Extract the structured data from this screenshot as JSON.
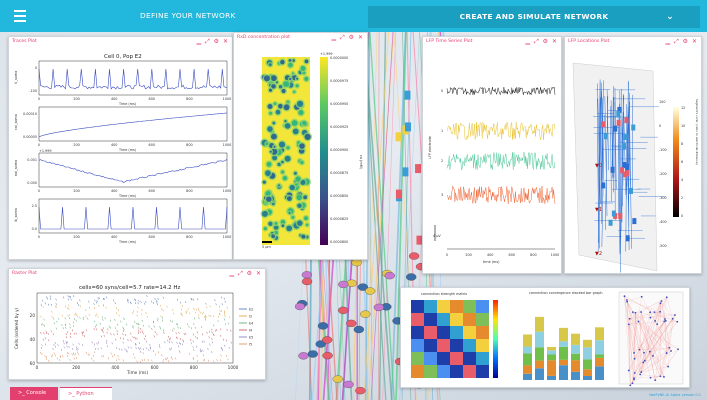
{
  "header": {
    "define_tab": "DEFINE YOUR NETWORK",
    "create_tab": "CREATE AND SIMULATE NETWORK"
  },
  "window_controls": "▁ ⤢ ⚙ ✕",
  "traces": {
    "title": "Traces Plot",
    "plot_title": "Cell 0, Pop E2",
    "xlabel": "Time (ms)",
    "panels": [
      {
        "ylabel": "V_soma",
        "yticks": [
          "0",
          "-100"
        ]
      },
      {
        "ylabel": "cai_soma",
        "yticks": [
          "0.00010",
          "0.00005"
        ]
      },
      {
        "ylabel": "nai_soma",
        "yticks": [
          "0.001",
          "0.000"
        ],
        "offset": "+1.999"
      },
      {
        "ylabel": "ik_soma",
        "yticks": [
          "2.5",
          "0.0"
        ]
      }
    ],
    "xticks": [
      "0",
      "200",
      "400",
      "600",
      "800",
      "1000"
    ]
  },
  "rxd": {
    "title": "RxD concentration plot",
    "colorbar_label": "ca (mM)",
    "scale": "5 μm",
    "cb_top": "+1.999",
    "cb_ticks": [
      "0.0000000",
      "0.0000975",
      "0.0000950",
      "0.0000925",
      "0.0000900",
      "0.0000875",
      "0.0000850",
      "0.0000825",
      "0.0000800"
    ]
  },
  "lfp_ts": {
    "title": "LFP Time Series Plot",
    "ylabel": "LFP electrode",
    "xlabel": "time (ms)",
    "scale": "4 μV",
    "xticks": [
      "0",
      "200",
      "400",
      "600",
      "800",
      "1000"
    ],
    "series": [
      {
        "label": "0",
        "color": "#1b1b1b"
      },
      {
        "label": "1",
        "color": "#e8c02a"
      },
      {
        "label": "2",
        "color": "#4cc79a"
      },
      {
        "label": "3",
        "color": "#ef5c2a"
      }
    ]
  },
  "lfp_loc": {
    "title": "LFP Locations Plot",
    "colorbar_label": "Segment's contr. (ratio to electrode distance)",
    "cb_ticks": [
      "12",
      "10",
      "8",
      "6",
      "4",
      "2",
      "0"
    ],
    "axis_ticks": [
      "100",
      "0",
      "-100",
      "-200",
      "-300",
      "-400",
      "-500"
    ],
    "electrodes": [
      "0",
      "1",
      "2"
    ]
  },
  "raster": {
    "title": "Raster Plot",
    "plot_title": "cells=60 syns/cell=5.7 rate=14.2 Hz",
    "ylabel": "Cells (ordered by y)",
    "xlabel": "Time (ms)",
    "xticks": [
      "0",
      "200",
      "400",
      "600",
      "800",
      "1000"
    ],
    "yticks": [
      "20",
      "40",
      "60"
    ],
    "legend": [
      {
        "label": "E2",
        "color": "#4c72b0"
      },
      {
        "label": "I2",
        "color": "#e0a13a"
      },
      {
        "label": "E4",
        "color": "#55a868"
      },
      {
        "label": "I4",
        "color": "#c44e52"
      },
      {
        "label": "E5",
        "color": "#8172b2"
      },
      {
        "label": "I5",
        "color": "#dd8452"
      }
    ]
  },
  "connectivity": {
    "heatmap_title": "connection strength matrix",
    "bar_title": "connection convergence stacked bar graph"
  },
  "bottom": {
    "console": ">_ Console",
    "python": ">_ Python"
  },
  "version": "NetPyNE-UI Alpha version 0.1"
}
